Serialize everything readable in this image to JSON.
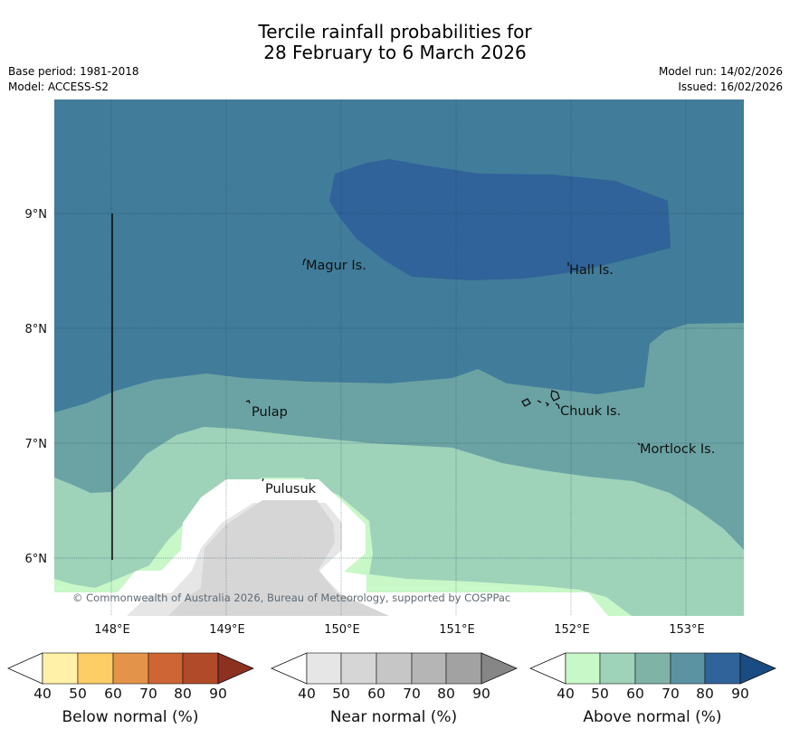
{
  "title": {
    "line1": "Tercile rainfall probabilities for",
    "line2": "28 February to 6 March 2026"
  },
  "meta": {
    "base_period": "Base period: 1981-2018",
    "model": "Model: ACCESS-S2",
    "model_run": "Model run: 14/02/2026",
    "issued": "Issued: 16/02/2026"
  },
  "map": {
    "lat_labels": [
      "9°N",
      "8°N",
      "7°N",
      "6°N"
    ],
    "lon_labels": [
      "148°E",
      "149°E",
      "150°E",
      "151°E",
      "152°E",
      "153°E"
    ],
    "places": [
      {
        "name": "Magur Is."
      },
      {
        "name": "Hall Is."
      },
      {
        "name": "Pulap"
      },
      {
        "name": "Chuuk Is."
      },
      {
        "name": "Mortlock Is."
      },
      {
        "name": "Pulusuk"
      }
    ],
    "copyright": "© Commonwealth of Australia 2026, Bureau of Meteorology, supported by COSPPac"
  },
  "legends": [
    {
      "title": "Below normal (%)",
      "ticks": [
        "40",
        "50",
        "60",
        "70",
        "80",
        "90"
      ],
      "colors": [
        "#fff1a8",
        "#fdcd66",
        "#e3944a",
        "#cd6534",
        "#b04a28",
        "#8c3020"
      ]
    },
    {
      "title": "Near normal (%)",
      "ticks": [
        "40",
        "50",
        "60",
        "70",
        "80",
        "90"
      ],
      "colors": [
        "#e6e6e6",
        "#d6d6d6",
        "#c6c6c6",
        "#b5b5b5",
        "#a2a2a2",
        "#868686"
      ]
    },
    {
      "title": "Above normal (%)",
      "ticks": [
        "40",
        "50",
        "60",
        "70",
        "80",
        "90"
      ],
      "colors": [
        "#c8f7c8",
        "#9ed2b9",
        "#7fb3a6",
        "#5b93a3",
        "#2f6399",
        "#1a4b82"
      ]
    }
  ],
  "colors": {
    "above_80": "#2f6399",
    "above_70": "#417c9a",
    "above_60": "#6ba3a4",
    "above_50": "#9ed2b9",
    "above_40": "#c8f7c8",
    "near_50": "#d6d6d6",
    "near_40": "#e6e6e6"
  }
}
